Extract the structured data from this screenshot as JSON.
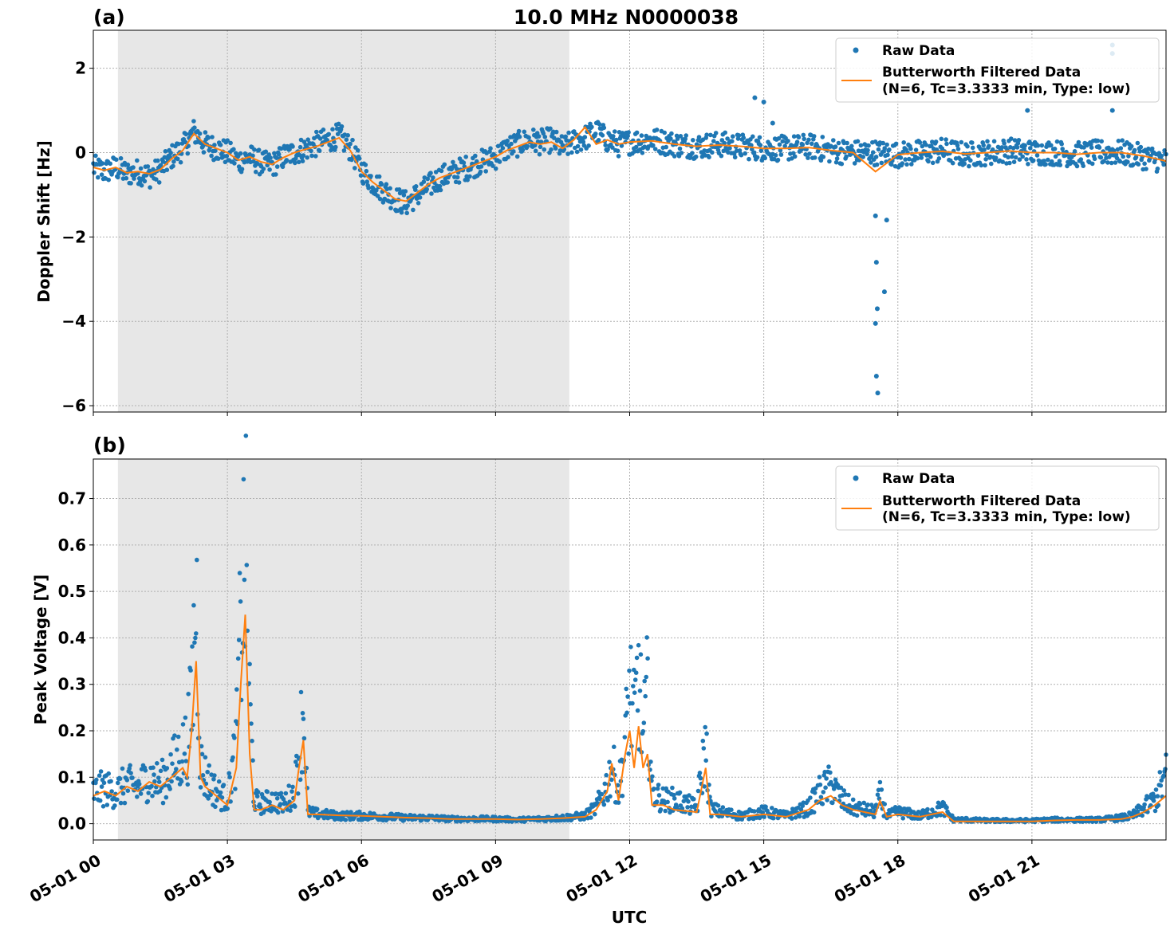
{
  "figure": {
    "title": "10.0 MHz N0000038",
    "xlabel": "UTC"
  },
  "legend": {
    "raw_label": "Raw Data",
    "filtered_line1": "Butterworth Filtered Data",
    "filtered_line2": "(N=6, Tc=3.3333 min, Type: low)"
  },
  "colors": {
    "raw": "#1f77b4",
    "filtered": "#ff7f0e",
    "shade": "#e7e7e7",
    "grid": "#b0b0b0"
  },
  "chart_data": [
    {
      "type": "scatter",
      "panel_label": "(a)",
      "ylabel": "Doppler Shift [Hz]",
      "xlim": [
        0,
        24
      ],
      "ylim": [
        -6.15,
        2.9
      ],
      "yticks": [
        2,
        0,
        -2,
        -4,
        -6
      ],
      "ytick_labels": [
        "2",
        "0",
        "−2",
        "−4",
        "−6"
      ],
      "xticks": [
        0,
        3,
        6,
        9,
        12,
        15,
        18,
        21
      ],
      "xtick_labels": [
        "05-01 00",
        "05-01 03",
        "05-01 06",
        "05-01 09",
        "05-01 12",
        "05-01 15",
        "05-01 18",
        "05-01 21"
      ],
      "shaded_interval": [
        0.55,
        10.65
      ],
      "grid": true,
      "legend_position": "top-right",
      "series": [
        {
          "name": "Raw Data",
          "style": "points",
          "x": [
            0.0,
            0.25,
            0.5,
            0.75,
            1.0,
            1.25,
            1.5,
            1.75,
            2.0,
            2.25,
            2.5,
            2.75,
            3.0,
            3.25,
            3.5,
            3.75,
            4.0,
            4.25,
            4.5,
            4.75,
            5.0,
            5.25,
            5.5,
            5.75,
            6.0,
            6.25,
            6.5,
            6.75,
            7.0,
            7.25,
            7.5,
            7.75,
            8.0,
            8.25,
            8.5,
            8.75,
            9.0,
            9.25,
            9.5,
            9.75,
            10.0,
            10.25,
            10.5,
            10.75,
            11.0,
            11.25,
            11.5,
            11.75,
            12.0,
            12.5,
            13.0,
            13.5,
            14.0,
            14.5,
            15.0,
            15.5,
            16.0,
            16.5,
            17.0,
            17.5,
            18.0,
            18.5,
            19.0,
            19.5,
            20.0,
            20.5,
            21.0,
            21.5,
            22.0,
            22.5,
            23.0,
            23.5,
            24.0
          ],
          "y": [
            -0.35,
            -0.45,
            -0.35,
            -0.5,
            -0.45,
            -0.55,
            -0.4,
            -0.1,
            0.1,
            0.5,
            0.2,
            0.1,
            0.0,
            -0.2,
            -0.1,
            -0.25,
            -0.3,
            -0.1,
            0.0,
            0.1,
            0.2,
            0.3,
            0.4,
            0.1,
            -0.4,
            -0.7,
            -0.9,
            -1.1,
            -1.2,
            -1.0,
            -0.8,
            -0.6,
            -0.5,
            -0.4,
            -0.3,
            -0.2,
            -0.1,
            0.1,
            0.2,
            0.3,
            0.25,
            0.3,
            0.1,
            0.25,
            0.35,
            0.5,
            0.3,
            0.2,
            0.25,
            0.3,
            0.2,
            0.15,
            0.2,
            0.15,
            0.1,
            0.1,
            0.15,
            0.05,
            0.0,
            0.0,
            -0.05,
            0.0,
            0.05,
            -0.05,
            0.0,
            0.05,
            0.0,
            0.0,
            -0.05,
            0.0,
            0.0,
            -0.1,
            -0.2
          ],
          "outliers": [
            [
              14.8,
              1.3
            ],
            [
              15.0,
              1.2
            ],
            [
              15.2,
              0.7
            ],
            [
              17.5,
              -1.5
            ],
            [
              17.52,
              -2.6
            ],
            [
              17.54,
              -3.7
            ],
            [
              17.5,
              -4.05
            ],
            [
              17.52,
              -5.3
            ],
            [
              17.55,
              -5.7
            ],
            [
              17.7,
              -3.3
            ],
            [
              17.75,
              -1.6
            ],
            [
              20.9,
              1.0
            ],
            [
              22.8,
              2.55
            ],
            [
              22.8,
              2.35
            ],
            [
              22.8,
              1.0
            ]
          ]
        },
        {
          "name": "Butterworth Filtered Data\n(N=6, Tc=3.3333 min, Type: low)",
          "style": "line",
          "x": [
            0.0,
            0.25,
            0.5,
            0.75,
            1.0,
            1.25,
            1.5,
            1.75,
            2.0,
            2.25,
            2.5,
            2.75,
            3.0,
            3.25,
            3.5,
            3.75,
            4.0,
            4.25,
            4.5,
            4.75,
            5.0,
            5.25,
            5.5,
            5.75,
            6.0,
            6.25,
            6.5,
            6.75,
            7.0,
            7.25,
            7.5,
            7.75,
            8.0,
            8.25,
            8.5,
            8.75,
            9.0,
            9.25,
            9.5,
            9.75,
            10.0,
            10.25,
            10.5,
            10.75,
            11.0,
            11.25,
            11.5,
            11.75,
            12.0,
            12.5,
            13.0,
            13.5,
            14.0,
            14.5,
            15.0,
            15.5,
            16.0,
            16.5,
            17.0,
            17.5,
            18.0,
            18.5,
            19.0,
            19.5,
            20.0,
            20.5,
            21.0,
            21.5,
            22.0,
            22.5,
            23.0,
            23.5,
            24.0
          ],
          "y": [
            -0.35,
            -0.42,
            -0.35,
            -0.48,
            -0.45,
            -0.5,
            -0.4,
            -0.15,
            0.05,
            0.45,
            0.2,
            0.1,
            0.0,
            -0.18,
            -0.1,
            -0.22,
            -0.28,
            -0.12,
            0.0,
            0.08,
            0.15,
            0.25,
            0.35,
            0.05,
            -0.45,
            -0.7,
            -0.9,
            -1.1,
            -1.15,
            -0.95,
            -0.75,
            -0.6,
            -0.5,
            -0.4,
            -0.3,
            -0.2,
            -0.1,
            0.05,
            0.15,
            0.25,
            0.2,
            0.25,
            0.1,
            0.3,
            0.6,
            0.2,
            0.3,
            0.2,
            0.25,
            0.28,
            0.2,
            0.15,
            0.18,
            0.15,
            0.1,
            0.1,
            0.12,
            0.05,
            0.0,
            -0.45,
            -0.05,
            0.0,
            0.03,
            -0.03,
            0.0,
            0.04,
            0.0,
            0.0,
            -0.04,
            0.0,
            0.0,
            -0.08,
            -0.2
          ]
        }
      ]
    },
    {
      "type": "scatter",
      "panel_label": "(b)",
      "ylabel": "Peak Voltage [V]",
      "xlim": [
        0,
        24
      ],
      "ylim": [
        -0.035,
        0.785
      ],
      "yticks": [
        0.7,
        0.6,
        0.5,
        0.4,
        0.3,
        0.2,
        0.1,
        0.0
      ],
      "ytick_labels": [
        "0.7",
        "0.6",
        "0.5",
        "0.4",
        "0.3",
        "0.2",
        "0.1",
        "0.0"
      ],
      "xticks": [
        0,
        3,
        6,
        9,
        12,
        15,
        18,
        21
      ],
      "xtick_labels": [
        "05-01 00",
        "05-01 03",
        "05-01 06",
        "05-01 09",
        "05-01 12",
        "05-01 15",
        "05-01 18",
        "05-01 21"
      ],
      "shaded_interval": [
        0.55,
        10.65
      ],
      "grid": true,
      "legend_position": "top-right",
      "series": [
        {
          "name": "Raw Data",
          "style": "points",
          "x": [
            0.0,
            0.25,
            0.5,
            0.75,
            1.0,
            1.25,
            1.5,
            1.75,
            2.0,
            2.1,
            2.2,
            2.3,
            2.4,
            2.5,
            2.75,
            3.0,
            3.2,
            3.3,
            3.4,
            3.5,
            3.6,
            3.75,
            4.0,
            4.25,
            4.5,
            4.6,
            4.7,
            4.8,
            5.0,
            5.5,
            6.0,
            6.5,
            7.0,
            7.5,
            8.0,
            8.5,
            9.0,
            9.5,
            10.0,
            10.5,
            11.0,
            11.25,
            11.5,
            11.6,
            11.75,
            11.9,
            12.0,
            12.1,
            12.2,
            12.3,
            12.4,
            12.5,
            12.75,
            13.0,
            13.5,
            13.7,
            13.8,
            14.0,
            14.5,
            15.0,
            15.5,
            16.0,
            16.25,
            16.5,
            16.75,
            17.0,
            17.5,
            17.6,
            17.75,
            18.0,
            18.5,
            19.0,
            19.25,
            19.5,
            20.0,
            20.5,
            21.0,
            21.5,
            22.0,
            22.5,
            23.0,
            23.25,
            23.5,
            23.75,
            24.0
          ],
          "y": [
            0.08,
            0.09,
            0.08,
            0.1,
            0.09,
            0.12,
            0.1,
            0.14,
            0.18,
            0.2,
            0.3,
            0.6,
            0.15,
            0.12,
            0.08,
            0.06,
            0.2,
            0.5,
            0.7,
            0.3,
            0.06,
            0.05,
            0.06,
            0.05,
            0.08,
            0.18,
            0.3,
            0.03,
            0.025,
            0.02,
            0.02,
            0.018,
            0.015,
            0.015,
            0.012,
            0.012,
            0.012,
            0.01,
            0.012,
            0.015,
            0.02,
            0.04,
            0.1,
            0.15,
            0.08,
            0.2,
            0.35,
            0.25,
            0.38,
            0.2,
            0.33,
            0.08,
            0.06,
            0.06,
            0.04,
            0.2,
            0.04,
            0.03,
            0.02,
            0.03,
            0.02,
            0.04,
            0.08,
            0.1,
            0.06,
            0.04,
            0.03,
            0.07,
            0.02,
            0.03,
            0.02,
            0.04,
            0.01,
            0.01,
            0.008,
            0.008,
            0.008,
            0.01,
            0.01,
            0.01,
            0.015,
            0.02,
            0.04,
            0.06,
            0.12
          ]
        },
        {
          "name": "Butterworth Filtered Data\n(N=6, Tc=3.3333 min, Type: low)",
          "style": "line",
          "x": [
            0.0,
            0.25,
            0.5,
            0.75,
            1.0,
            1.25,
            1.5,
            1.75,
            2.0,
            2.1,
            2.2,
            2.3,
            2.4,
            2.5,
            2.75,
            3.0,
            3.2,
            3.3,
            3.4,
            3.5,
            3.6,
            3.75,
            4.0,
            4.25,
            4.5,
            4.6,
            4.7,
            4.8,
            5.0,
            5.5,
            6.0,
            6.5,
            7.0,
            7.5,
            8.0,
            8.5,
            9.0,
            9.5,
            10.0,
            10.5,
            11.0,
            11.25,
            11.5,
            11.6,
            11.75,
            11.9,
            12.0,
            12.1,
            12.2,
            12.3,
            12.4,
            12.5,
            12.75,
            13.0,
            13.5,
            13.7,
            13.8,
            14.0,
            14.5,
            15.0,
            15.5,
            16.0,
            16.25,
            16.5,
            16.75,
            17.0,
            17.5,
            17.6,
            17.75,
            18.0,
            18.5,
            19.0,
            19.25,
            19.5,
            20.0,
            20.5,
            21.0,
            21.5,
            22.0,
            22.5,
            23.0,
            23.25,
            23.5,
            23.75,
            24.0
          ],
          "y": [
            0.06,
            0.07,
            0.06,
            0.08,
            0.07,
            0.09,
            0.08,
            0.1,
            0.12,
            0.1,
            0.2,
            0.35,
            0.1,
            0.08,
            0.06,
            0.04,
            0.12,
            0.3,
            0.45,
            0.15,
            0.03,
            0.03,
            0.04,
            0.03,
            0.05,
            0.12,
            0.18,
            0.02,
            0.02,
            0.018,
            0.017,
            0.015,
            0.013,
            0.012,
            0.01,
            0.01,
            0.01,
            0.009,
            0.01,
            0.012,
            0.015,
            0.03,
            0.07,
            0.13,
            0.05,
            0.15,
            0.2,
            0.12,
            0.21,
            0.12,
            0.15,
            0.04,
            0.04,
            0.03,
            0.025,
            0.12,
            0.02,
            0.02,
            0.015,
            0.02,
            0.015,
            0.03,
            0.05,
            0.06,
            0.04,
            0.03,
            0.02,
            0.05,
            0.015,
            0.02,
            0.015,
            0.025,
            0.005,
            0.005,
            0.005,
            0.005,
            0.005,
            0.007,
            0.008,
            0.008,
            0.01,
            0.015,
            0.025,
            0.04,
            0.06
          ]
        }
      ]
    }
  ]
}
